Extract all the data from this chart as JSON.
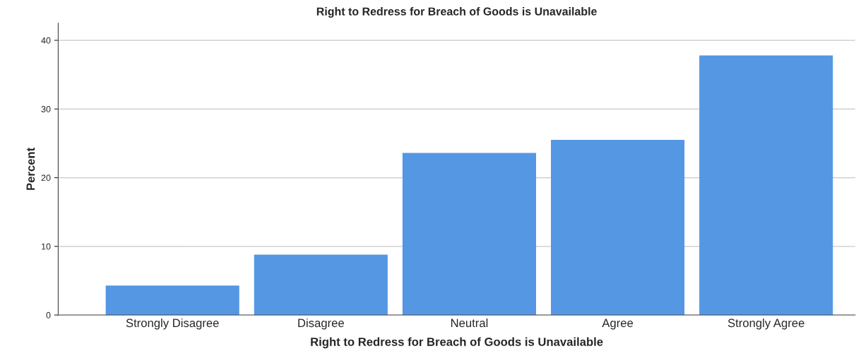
{
  "chart_data": {
    "type": "bar",
    "title": "Right to Redress for Breach of Goods is Unavailable",
    "xlabel": "Right to Redress for Breach of Goods is Unavailable",
    "ylabel": "Percent",
    "categories": [
      "Strongly Disagree",
      "Disagree",
      "Neutral",
      "Agree",
      "Strongly Agree"
    ],
    "values": [
      4.3,
      8.8,
      23.6,
      25.5,
      37.8
    ],
    "color": "#5597e3",
    "ylim": [
      0,
      42.5
    ],
    "yticks": [
      0,
      10,
      20,
      30,
      40
    ],
    "grid": "y"
  }
}
